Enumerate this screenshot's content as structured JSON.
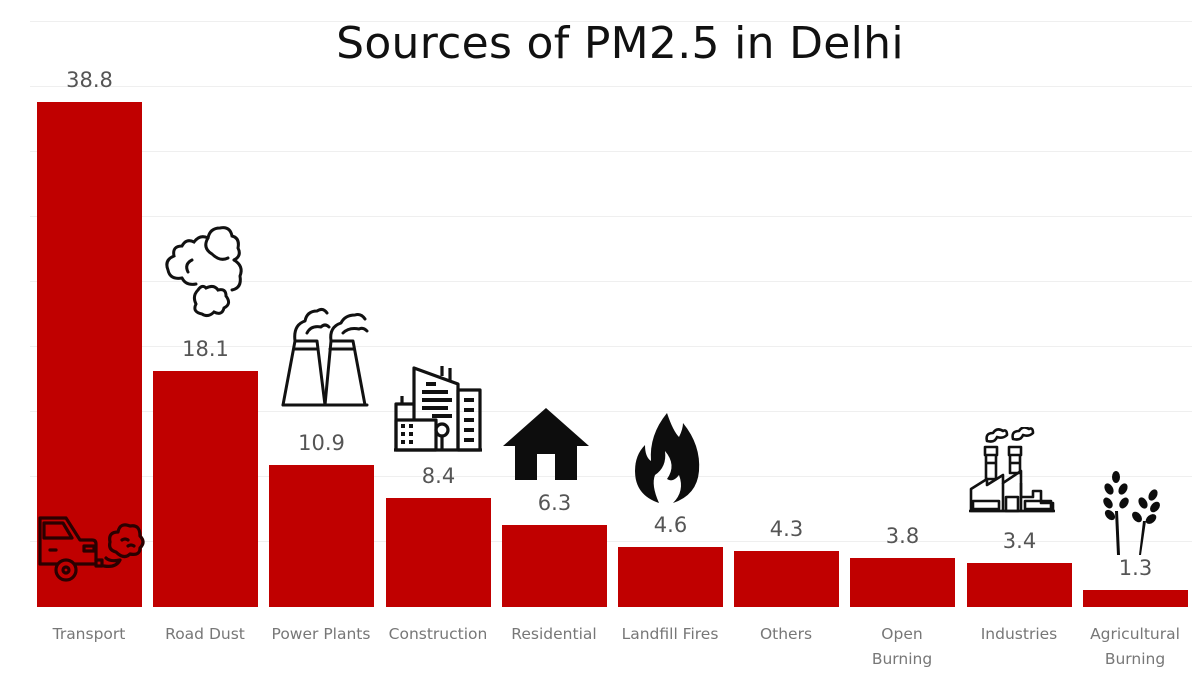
{
  "title": "Sources of PM2.5 in Delhi",
  "colors": {
    "bar": "#c00000",
    "value_label": "#555555",
    "category_label": "#777777",
    "gridline": "#efefef",
    "title": "#111111"
  },
  "bars": [
    {
      "category": "Transport",
      "value_label": "38.8",
      "icon": "car-exhaust-icon"
    },
    {
      "category": "Road Dust",
      "value_label": "18.1",
      "icon": "dust-cloud-icon"
    },
    {
      "category": "Power Plants",
      "value_label": "10.9",
      "icon": "power-plant-icon"
    },
    {
      "category": "Construction",
      "value_label": "8.4",
      "icon": "buildings-icon"
    },
    {
      "category": "Residential",
      "value_label": "6.3",
      "icon": "house-icon"
    },
    {
      "category": "Landfill Fires",
      "value_label": "4.6",
      "icon": "fire-icon"
    },
    {
      "category": "Others",
      "value_label": "4.3",
      "icon": ""
    },
    {
      "category": "Open Burning",
      "value_label": "3.8",
      "icon": ""
    },
    {
      "category": "Industries",
      "value_label": "3.4",
      "icon": "factory-icon"
    },
    {
      "category": "Agricultural Burning",
      "value_label": "1.3",
      "icon": "wheat-icon"
    }
  ],
  "chart_data": {
    "type": "bar",
    "title": "Sources of PM2.5 in Delhi",
    "xlabel": "",
    "ylabel": "",
    "categories": [
      "Transport",
      "Road Dust",
      "Power Plants",
      "Construction",
      "Residential",
      "Landfill Fires",
      "Others",
      "Open Burning",
      "Industries",
      "Agricultural Burning"
    ],
    "values": [
      38.8,
      18.1,
      10.9,
      8.4,
      6.3,
      4.6,
      4.3,
      3.8,
      3.4,
      1.3
    ],
    "ylim": [
      0,
      45
    ],
    "grid": true,
    "legend": null,
    "data_labels": true
  }
}
